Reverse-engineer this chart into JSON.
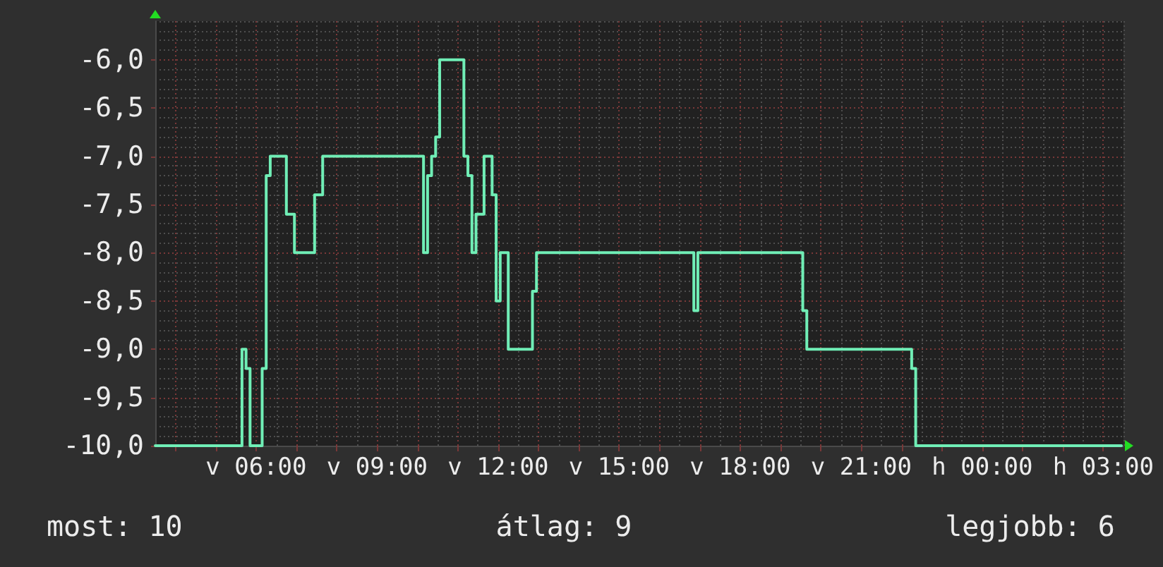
{
  "chart_data": {
    "type": "step",
    "color": "#70eeb6",
    "categories": [
      null,
      null,
      null,
      null,
      null,
      null,
      null,
      null,
      null,
      null,
      null,
      null,
      null,
      null,
      null,
      null,
      null,
      null,
      null,
      null,
      null,
      null,
      null,
      null,
      null,
      "v 06:00",
      null,
      null,
      null,
      null,
      null,
      null,
      null,
      null,
      null,
      null,
      null,
      null,
      null,
      null,
      null,
      null,
      null,
      null,
      null,
      null,
      null,
      null,
      null,
      null,
      null,
      null,
      null,
      null,
      null,
      "v 09:00",
      null,
      null,
      null,
      null,
      null,
      null,
      null,
      null,
      null,
      null,
      null,
      null,
      null,
      null,
      null,
      null,
      null,
      null,
      null,
      null,
      null,
      null,
      null,
      null,
      null,
      null,
      null,
      null,
      null,
      "v 12:00",
      null,
      null,
      null,
      null,
      null,
      null,
      null,
      null,
      null,
      null,
      null,
      null,
      null,
      null,
      null,
      null,
      null,
      null,
      null,
      null,
      null,
      null,
      null,
      null,
      null,
      null,
      null,
      null,
      null,
      "v 15:00",
      null,
      null,
      null,
      null,
      null,
      null,
      null,
      null,
      null,
      null,
      null,
      null,
      null,
      null,
      null,
      null,
      null,
      null,
      null,
      null,
      null,
      null,
      null,
      null,
      null,
      null,
      null,
      null,
      null,
      "v 18:00",
      null,
      null,
      null,
      null,
      null,
      null,
      null,
      null,
      null,
      null,
      null,
      null,
      null,
      null,
      null,
      null,
      null,
      null,
      null,
      null,
      null,
      null,
      null,
      null,
      null,
      null,
      null,
      null,
      null,
      "v 21:00",
      null,
      null,
      null,
      null,
      null,
      null,
      null,
      null,
      null,
      null,
      null,
      null,
      null,
      null,
      null,
      null,
      null,
      null,
      null,
      null,
      null,
      null,
      null,
      null,
      null,
      null,
      null,
      null,
      null,
      "h 00:00",
      null,
      null,
      null,
      null,
      null,
      null,
      null,
      null,
      null,
      null,
      null,
      null,
      null,
      null,
      null,
      null,
      null,
      null,
      null,
      null,
      null,
      null,
      null,
      null,
      null,
      null,
      null,
      null,
      null,
      "h 03:00",
      null,
      null,
      null,
      null,
      null
    ],
    "values": [
      -10,
      -10,
      -10,
      -10,
      -10,
      -10,
      -10,
      -10,
      -10,
      -10,
      -10,
      -10,
      -10,
      -10,
      -10,
      -10,
      -10,
      -10,
      -10,
      -10,
      -10,
      -10,
      -9,
      -9.2,
      -10,
      -10,
      -10,
      -9.2,
      -7.2,
      -7,
      -7,
      -7,
      -7,
      -7.6,
      -7.6,
      -8,
      -8,
      -8,
      -8,
      -8,
      -7.4,
      -7.4,
      -7,
      -7,
      -7,
      -7,
      -7,
      -7,
      -7,
      -7,
      -7,
      -7,
      -7,
      -7,
      -7,
      -7,
      -7,
      -7,
      -7,
      -7,
      -7,
      -7,
      -7,
      -7,
      -7,
      -7,
      -7,
      -8,
      -7.2,
      -7,
      -6.8,
      -6,
      -6,
      -6,
      -6,
      -6,
      -6,
      -7,
      -7.2,
      -8,
      -7.6,
      -7.6,
      -7,
      -7,
      -7.4,
      -8.5,
      -8,
      -8,
      -9,
      -9,
      -9,
      -9,
      -9,
      -9,
      -8.4,
      -8,
      -8,
      -8,
      -8,
      -8,
      -8,
      -8,
      -8,
      -8,
      -8,
      -8,
      -8,
      -8,
      -8,
      -8,
      -8,
      -8,
      -8,
      -8,
      -8,
      -8,
      -8,
      -8,
      -8,
      -8,
      -8,
      -8,
      -8,
      -8,
      -8,
      -8,
      -8,
      -8,
      -8,
      -8,
      -8,
      -8,
      -8,
      -8,
      -8.6,
      -8,
      -8,
      -8,
      -8,
      -8,
      -8,
      -8,
      -8,
      -8,
      -8,
      -8,
      -8,
      -8,
      -8,
      -8,
      -8,
      -8,
      -8,
      -8,
      -8,
      -8,
      -8,
      -8,
      -8,
      -8,
      -8,
      -8.6,
      -9,
      -9,
      -9,
      -9,
      -9,
      -9,
      -9,
      -9,
      -9,
      -9,
      -9,
      -9,
      -9,
      -9,
      -9,
      -9,
      -9,
      -9,
      -9,
      -9,
      -9,
      -9,
      -9,
      -9,
      -9,
      -9,
      -9.2,
      -10,
      -10,
      -10,
      -10,
      -10,
      -10,
      -10,
      -10,
      -10,
      -10,
      -10,
      -10,
      -10,
      -10,
      -10,
      -10,
      -10,
      -10,
      -10,
      -10,
      -10,
      -10,
      -10,
      -10,
      -10,
      -10,
      -10,
      -10,
      -10,
      -10,
      -10,
      -10,
      -10,
      -10,
      -10,
      -10,
      -10,
      -10,
      -10,
      -10,
      -10,
      -10,
      -10,
      -10,
      -10,
      -10,
      -10,
      -10,
      -10,
      -10,
      -10,
      null
    ],
    "ylim": [
      -10,
      -5.6
    ],
    "yticks": [
      {
        "value": -10,
        "label": "-10,0"
      },
      {
        "value": -9.5,
        "label": "-9,5"
      },
      {
        "value": -9,
        "label": "-9,0"
      },
      {
        "value": -8.5,
        "label": "-8,5"
      },
      {
        "value": -8,
        "label": "-8,0"
      },
      {
        "value": -7.5,
        "label": "-7,5"
      },
      {
        "value": -7,
        "label": "-7,0"
      },
      {
        "value": -6.5,
        "label": "-6,5"
      },
      {
        "value": -6,
        "label": "-6,0"
      }
    ],
    "grid": true,
    "annotations": [
      "most: 10",
      "átlag: 9",
      "legjobb: 6"
    ]
  }
}
